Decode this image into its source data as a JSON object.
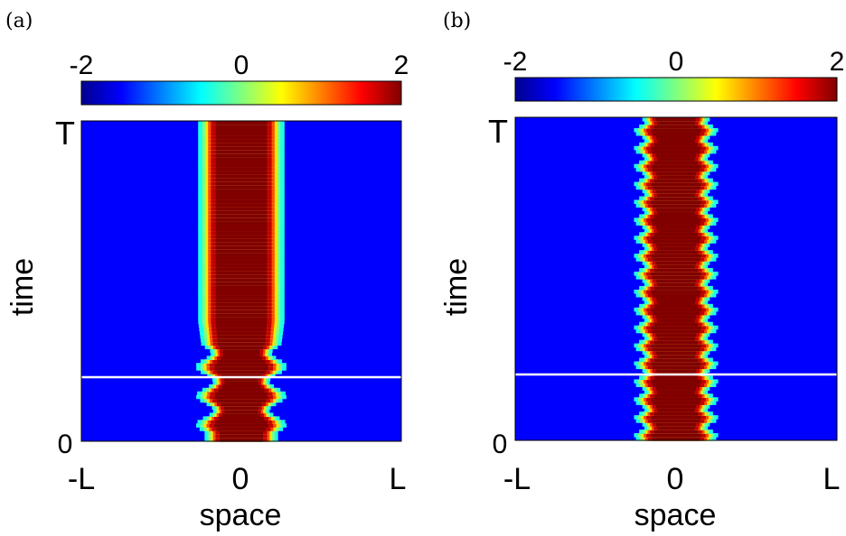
{
  "colormap": {
    "name": "jet",
    "stops": [
      "#00008f",
      "#0000ff",
      "#00ffff",
      "#ffff00",
      "#ff0000",
      "#800000"
    ]
  },
  "background_color": "#0000ff",
  "marker_line_color": "#ffffff",
  "chart_data": [
    {
      "type": "heatmap",
      "panel_label": "(a)",
      "colorbar": {
        "min": -2,
        "max": 2,
        "tick_labels": [
          "-2",
          "0",
          "2"
        ]
      },
      "xlabel": "space",
      "ylabel": "time",
      "x_tick_labels": [
        "-L",
        "0",
        "L"
      ],
      "y_tick_labels": [
        "0",
        "T"
      ],
      "xlim": [
        -1,
        1
      ],
      "ylim": [
        0,
        1
      ],
      "marker_line_time": 0.2,
      "pulse": {
        "center": 0.0,
        "upper_half_width": 0.2,
        "lower_half_width": 0.17,
        "breathing_amplitude": 0.04,
        "breathing_cycles": 3,
        "breathing_region": [
          0.03,
          0.3
        ],
        "peak_value": 2.0
      }
    },
    {
      "type": "heatmap",
      "panel_label": "(b)",
      "colorbar": {
        "min": -2,
        "max": 2,
        "tick_labels": [
          "-2",
          "0",
          "2"
        ]
      },
      "xlabel": "space",
      "ylabel": "time",
      "x_tick_labels": [
        "-L",
        "0",
        "L"
      ],
      "y_tick_labels": [
        "0",
        "T"
      ],
      "xlim": [
        -1,
        1
      ],
      "ylim": [
        0,
        1
      ],
      "marker_line_time": 0.2,
      "pulse": {
        "center": 0.0,
        "upper_half_width": 0.17,
        "lower_half_width": 0.17,
        "breathing_amplitude": 0.025,
        "breathing_cycles": 18,
        "breathing_region": [
          0.0,
          1.0
        ],
        "peak_value": 2.0
      }
    }
  ]
}
